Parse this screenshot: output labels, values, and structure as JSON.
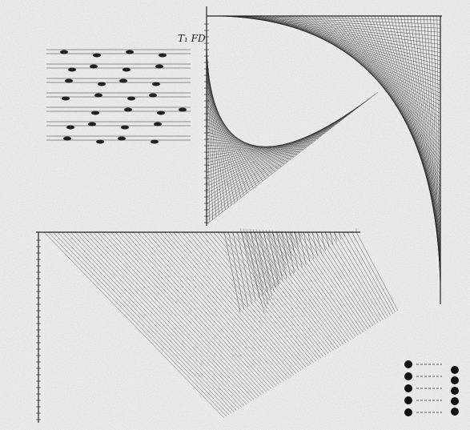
{
  "annotations": [
    "T₁ FD"
  ]
}
